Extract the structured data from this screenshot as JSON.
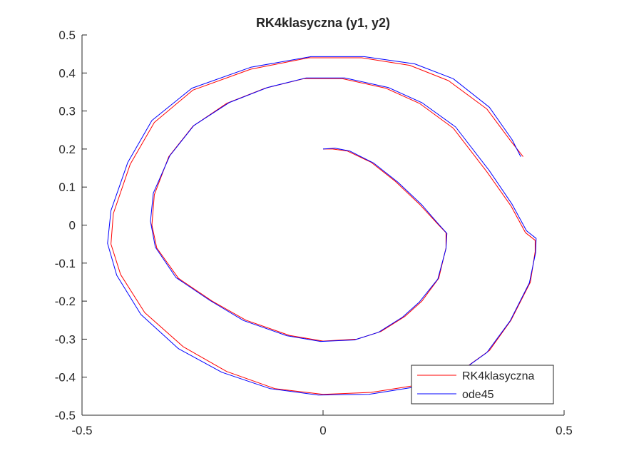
{
  "chart_data": {
    "type": "line",
    "title": "RK4klasyczna (y1, y2)",
    "xlabel": "",
    "ylabel": "",
    "xlim": [
      -0.5,
      0.5
    ],
    "ylim": [
      -0.5,
      0.5
    ],
    "xticks": [
      -0.5,
      0,
      0.5
    ],
    "xtick_labels": [
      "-0.5",
      "0",
      "0.5"
    ],
    "yticks": [
      -0.5,
      -0.4,
      -0.3,
      -0.2,
      -0.1,
      0,
      0.1,
      0.2,
      0.3,
      0.4,
      0.5
    ],
    "ytick_labels": [
      "-0.5",
      "-0.4",
      "-0.3",
      "-0.2",
      "-0.1",
      "0",
      "0.1",
      "0.2",
      "0.3",
      "0.4",
      "0.5"
    ],
    "grid": false,
    "legend_position": "bottom-right",
    "series": [
      {
        "name": "RK4klasyczna",
        "color": "#ff0000",
        "x": [
          0.0,
          0.02,
          0.05,
          0.1,
          0.15,
          0.2,
          0.24,
          0.255,
          0.255,
          0.24,
          0.205,
          0.17,
          0.12,
          0.07,
          0.0,
          -0.07,
          -0.16,
          -0.23,
          -0.3,
          -0.345,
          -0.355,
          -0.35,
          -0.32,
          -0.27,
          -0.2,
          -0.12,
          -0.04,
          0.04,
          0.13,
          0.2,
          0.27,
          0.34,
          0.39,
          0.42,
          0.44,
          0.44,
          0.43,
          0.39,
          0.345,
          0.29,
          0.2,
          0.1,
          0.0,
          -0.1,
          -0.2,
          -0.29,
          -0.37,
          -0.42,
          -0.44,
          -0.435,
          -0.4,
          -0.35,
          -0.27,
          -0.15,
          -0.03,
          0.08,
          0.18,
          0.26,
          0.34,
          0.39,
          0.415
        ],
        "y": [
          0.2,
          0.2,
          0.195,
          0.165,
          0.115,
          0.055,
          0.0,
          -0.02,
          -0.06,
          -0.14,
          -0.2,
          -0.24,
          -0.28,
          -0.3,
          -0.305,
          -0.29,
          -0.25,
          -0.2,
          -0.14,
          -0.06,
          0.0,
          0.08,
          0.18,
          0.26,
          0.32,
          0.36,
          0.385,
          0.385,
          0.36,
          0.32,
          0.255,
          0.14,
          0.05,
          -0.02,
          -0.04,
          -0.07,
          -0.15,
          -0.25,
          -0.33,
          -0.38,
          -0.42,
          -0.44,
          -0.445,
          -0.43,
          -0.385,
          -0.32,
          -0.23,
          -0.13,
          -0.05,
          0.03,
          0.16,
          0.27,
          0.355,
          0.41,
          0.44,
          0.44,
          0.42,
          0.38,
          0.305,
          0.22,
          0.18
        ]
      },
      {
        "name": "ode45",
        "color": "#0000ff",
        "x": [
          0.0,
          0.025,
          0.055,
          0.105,
          0.155,
          0.205,
          0.24,
          0.257,
          0.255,
          0.238,
          0.2,
          0.165,
          0.115,
          0.065,
          -0.005,
          -0.075,
          -0.165,
          -0.235,
          -0.305,
          -0.348,
          -0.358,
          -0.352,
          -0.318,
          -0.268,
          -0.195,
          -0.115,
          -0.035,
          0.045,
          0.135,
          0.205,
          0.275,
          0.345,
          0.392,
          0.422,
          0.442,
          0.441,
          0.428,
          0.388,
          0.34,
          0.285,
          0.195,
          0.095,
          -0.01,
          -0.11,
          -0.21,
          -0.3,
          -0.378,
          -0.428,
          -0.447,
          -0.44,
          -0.405,
          -0.355,
          -0.272,
          -0.15,
          -0.025,
          0.085,
          0.19,
          0.27,
          0.345,
          0.392,
          0.41
        ],
        "y": [
          0.2,
          0.202,
          0.195,
          0.163,
          0.113,
          0.053,
          0.002,
          -0.022,
          -0.062,
          -0.142,
          -0.202,
          -0.242,
          -0.282,
          -0.302,
          -0.306,
          -0.291,
          -0.251,
          -0.198,
          -0.138,
          -0.058,
          0.01,
          0.084,
          0.182,
          0.262,
          0.322,
          0.362,
          0.387,
          0.387,
          0.362,
          0.322,
          0.258,
          0.143,
          0.055,
          -0.015,
          -0.035,
          -0.072,
          -0.152,
          -0.252,
          -0.335,
          -0.385,
          -0.425,
          -0.445,
          -0.447,
          -0.43,
          -0.387,
          -0.325,
          -0.235,
          -0.132,
          -0.048,
          0.038,
          0.165,
          0.275,
          0.36,
          0.415,
          0.443,
          0.443,
          0.424,
          0.385,
          0.31,
          0.225,
          0.18
        ]
      }
    ]
  }
}
